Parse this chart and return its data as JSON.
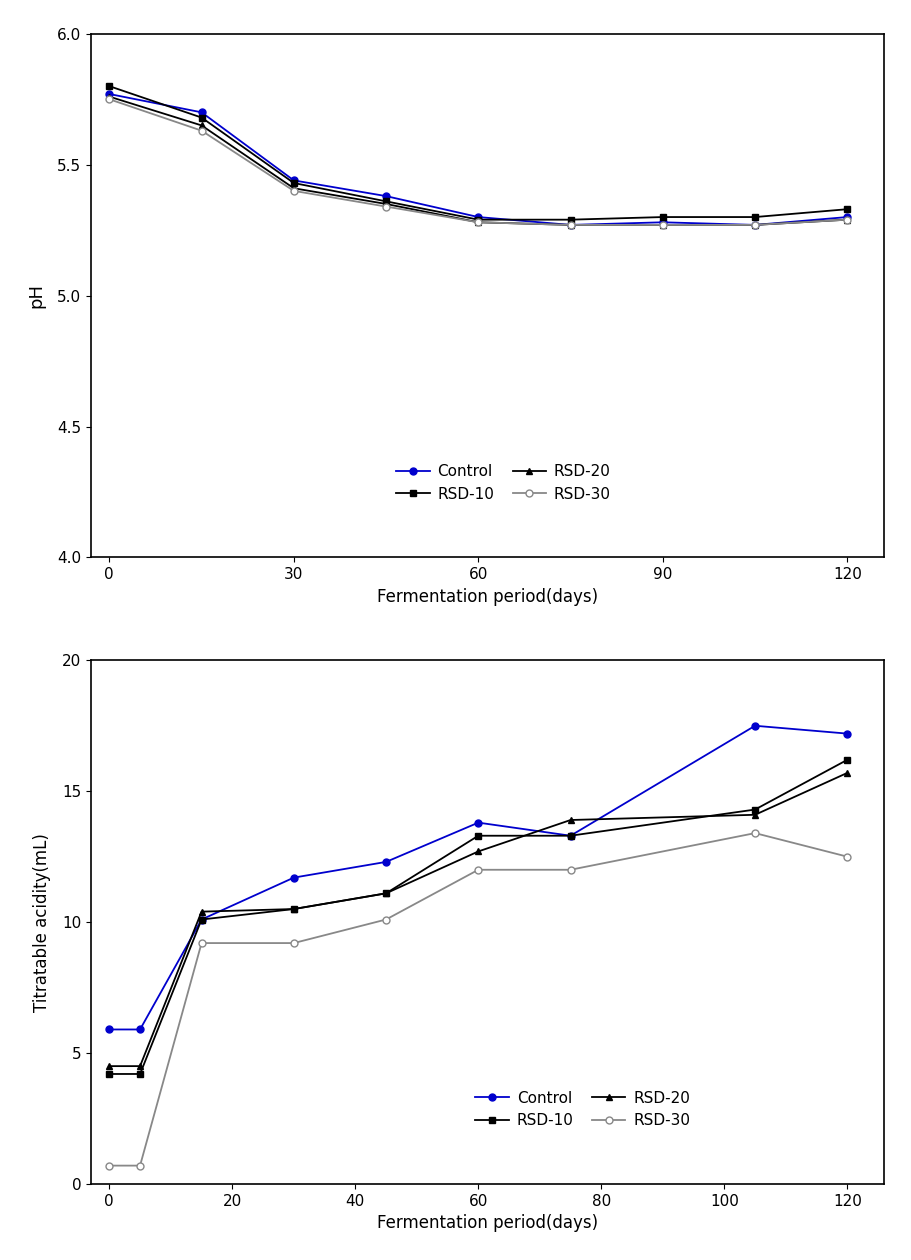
{
  "ph": {
    "x": [
      0,
      15,
      30,
      45,
      60,
      75,
      90,
      105,
      120
    ],
    "control": [
      5.77,
      5.7,
      5.44,
      5.38,
      5.3,
      5.27,
      5.28,
      5.27,
      5.3
    ],
    "rsd10": [
      5.8,
      5.68,
      5.43,
      5.36,
      5.29,
      5.29,
      5.3,
      5.3,
      5.33
    ],
    "rsd20": [
      5.76,
      5.65,
      5.41,
      5.35,
      5.28,
      5.27,
      5.27,
      5.27,
      5.29
    ],
    "rsd30": [
      5.75,
      5.63,
      5.4,
      5.34,
      5.28,
      5.27,
      5.27,
      5.27,
      5.29
    ],
    "ylim": [
      4.0,
      6.0
    ],
    "yticks": [
      4.0,
      4.5,
      5.0,
      5.5,
      6.0
    ],
    "xticks": [
      0,
      30,
      60,
      90,
      120
    ],
    "ylabel": "pH",
    "xlabel": "Fermentation period(days)"
  },
  "acidity": {
    "x": [
      0,
      5,
      15,
      30,
      45,
      60,
      75,
      105,
      120
    ],
    "control": [
      5.9,
      5.9,
      10.1,
      11.7,
      12.3,
      13.8,
      13.3,
      17.5,
      17.2
    ],
    "rsd10": [
      4.2,
      4.2,
      10.1,
      10.5,
      11.1,
      13.3,
      13.3,
      14.3,
      16.2
    ],
    "rsd20": [
      4.5,
      4.5,
      10.4,
      10.5,
      11.1,
      12.7,
      13.9,
      14.1,
      15.7
    ],
    "rsd30": [
      0.7,
      0.7,
      9.2,
      9.2,
      10.1,
      12.0,
      12.0,
      13.4,
      12.5
    ],
    "ylim": [
      0.0,
      20.0
    ],
    "yticks": [
      0.0,
      5.0,
      10.0,
      15.0,
      20.0
    ],
    "xticks": [
      0,
      20,
      40,
      60,
      80,
      100,
      120
    ],
    "ylabel": "Titratable acidity(mL)",
    "xlabel": "Fermentation period(days)"
  },
  "control_color": "#0000CD",
  "rsd10_color": "#000000",
  "rsd20_color": "#000000",
  "rsd30_color": "#888888"
}
